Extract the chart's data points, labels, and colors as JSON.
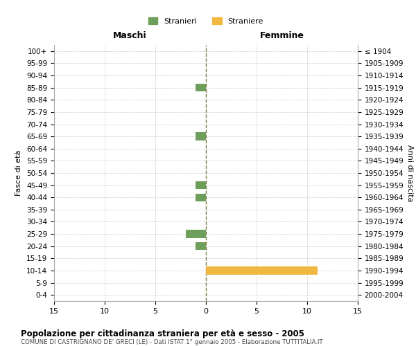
{
  "age_groups": [
    "100+",
    "95-99",
    "90-94",
    "85-89",
    "80-84",
    "75-79",
    "70-74",
    "65-69",
    "60-64",
    "55-59",
    "50-54",
    "45-49",
    "40-44",
    "35-39",
    "30-34",
    "25-29",
    "20-24",
    "15-19",
    "10-14",
    "5-9",
    "0-4"
  ],
  "birth_years": [
    "≤ 1904",
    "1905-1909",
    "1910-1914",
    "1915-1919",
    "1920-1924",
    "1925-1929",
    "1930-1934",
    "1935-1939",
    "1940-1944",
    "1945-1949",
    "1950-1954",
    "1955-1959",
    "1960-1964",
    "1965-1969",
    "1970-1974",
    "1975-1979",
    "1980-1984",
    "1985-1989",
    "1990-1994",
    "1995-1999",
    "2000-2004"
  ],
  "males": [
    0,
    0,
    0,
    1,
    0,
    0,
    0,
    1,
    0,
    0,
    0,
    1,
    1,
    0,
    0,
    2,
    1,
    0,
    0,
    0,
    0
  ],
  "females": [
    0,
    0,
    0,
    0,
    0,
    0,
    0,
    0,
    0,
    0,
    0,
    0,
    0,
    0,
    0,
    0,
    0,
    0,
    11,
    0,
    0
  ],
  "male_color": "#6d9e5a",
  "female_color": "#f0b840",
  "center_line_color": "#7a7a40",
  "grid_color": "#cccccc",
  "title": "Popolazione per cittadinanza straniera per età e sesso - 2005",
  "subtitle": "COMUNE DI CASTRIGNANO DE' GRECI (LE) - Dati ISTAT 1° gennaio 2005 - Elaborazione TUTTITALIA.IT",
  "xlabel_left": "Maschi",
  "xlabel_right": "Femmine",
  "ylabel_left": "Fasce di età",
  "ylabel_right": "Anni di nascita",
  "legend_male": "Stranieri",
  "legend_female": "Straniere",
  "xlim": 15,
  "background_color": "#ffffff",
  "plot_bg_color": "#ffffff"
}
